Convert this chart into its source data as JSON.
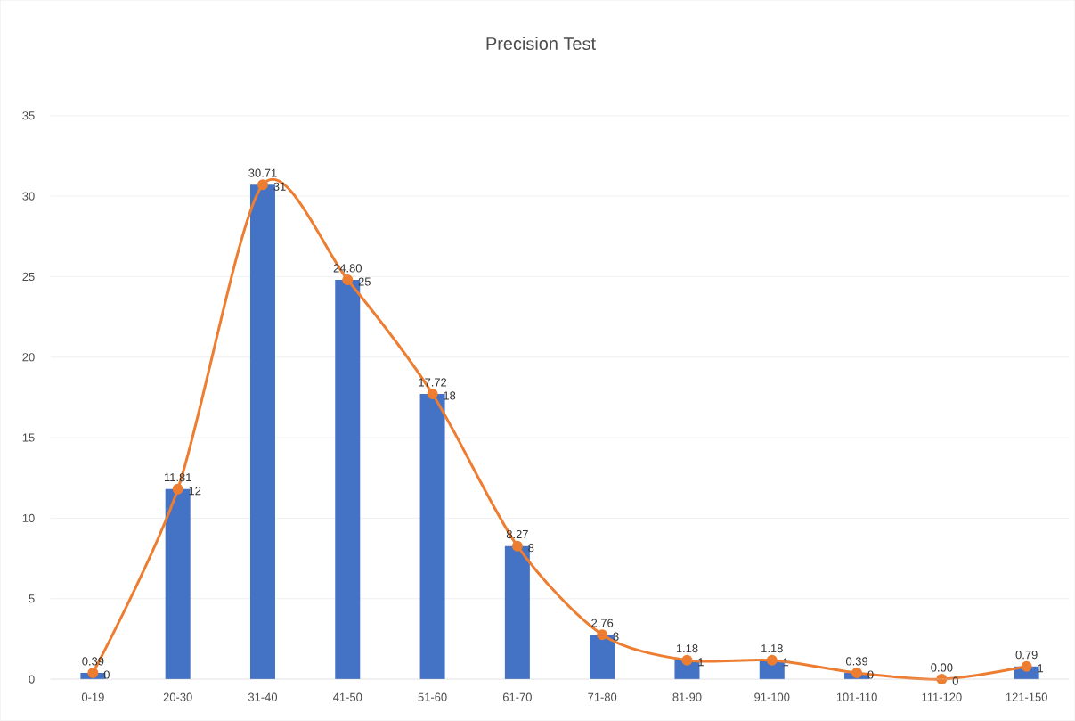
{
  "chart_data": {
    "type": "bar",
    "title": "Precision Test",
    "categories": [
      "0-19",
      "20-30",
      "31-40",
      "41-50",
      "51-60",
      "61-70",
      "71-80",
      "81-90",
      "91-100",
      "101-110",
      "111-120",
      "121-150"
    ],
    "series": [
      {
        "color": "#4472c4",
        "values": [
          0.39,
          11.81,
          30.71,
          24.8,
          17.72,
          8.27,
          2.76,
          1.18,
          1.18,
          0.39,
          0.0,
          0.79
        ],
        "value_labels": [
          "0.39",
          "11.81",
          "30.71",
          "24.80",
          "17.72",
          "8.27",
          "2.76",
          "1.18",
          "1.18",
          "0.39",
          "0.00",
          "0.79"
        ]
      },
      {
        "type": "line",
        "color": "#ed7d31",
        "marker": "circle",
        "values": [
          0.39,
          11.81,
          30.71,
          24.8,
          17.72,
          8.27,
          2.76,
          1.18,
          1.18,
          0.39,
          0.0,
          0.79
        ],
        "value_labels": [
          "0",
          "12",
          "31",
          "25",
          "18",
          "8",
          "3",
          "1",
          "1",
          "0",
          "0",
          "1"
        ]
      }
    ],
    "ylim": [
      0,
      35
    ],
    "yticks": [
      0,
      5,
      10,
      15,
      20,
      25,
      30,
      35
    ],
    "grid": "y"
  }
}
